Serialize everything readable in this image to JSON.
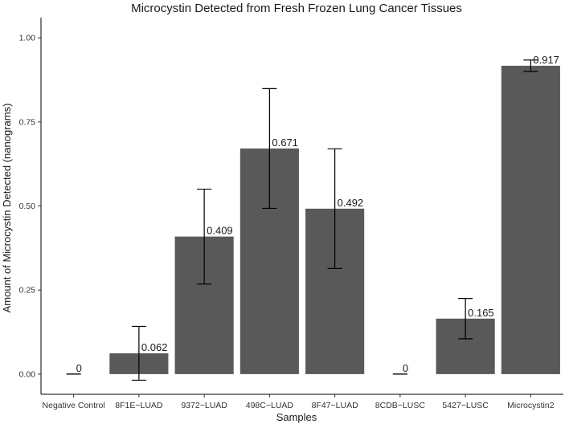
{
  "chart_data": {
    "type": "bar",
    "title": "Microcystin Detected from Fresh Frozen Lung Cancer Tissues",
    "xlabel": "Samples",
    "ylabel": "Amount of Microcystin Detected (nanograms)",
    "categories": [
      "Negative Control",
      "8F1E−LUAD",
      "9372−LUAD",
      "498C−LUAD",
      "8F47−LUAD",
      "8CDB−LUSC",
      "5427−LUSC",
      "Microcystin2"
    ],
    "values": [
      0,
      0.062,
      0.409,
      0.671,
      0.492,
      0,
      0.165,
      0.917
    ],
    "value_labels": [
      "0",
      "0.062",
      "0.409",
      "0.671",
      "0.492",
      "0",
      "0.165",
      "0.917"
    ],
    "error_low": [
      0,
      -0.018,
      0.268,
      0.493,
      0.314,
      0,
      0.105,
      0.9
    ],
    "error_high": [
      0,
      0.142,
      0.55,
      0.849,
      0.67,
      0,
      0.225,
      0.934
    ],
    "ylim": [
      -0.06,
      1.06
    ],
    "yticks": [
      0,
      0.25,
      0.5,
      0.75,
      1
    ],
    "ytick_labels": [
      "0.00",
      "0.25",
      "0.50",
      "0.75",
      "1.00"
    ],
    "grid": false,
    "legend": "none",
    "bar_color": "#595959"
  }
}
